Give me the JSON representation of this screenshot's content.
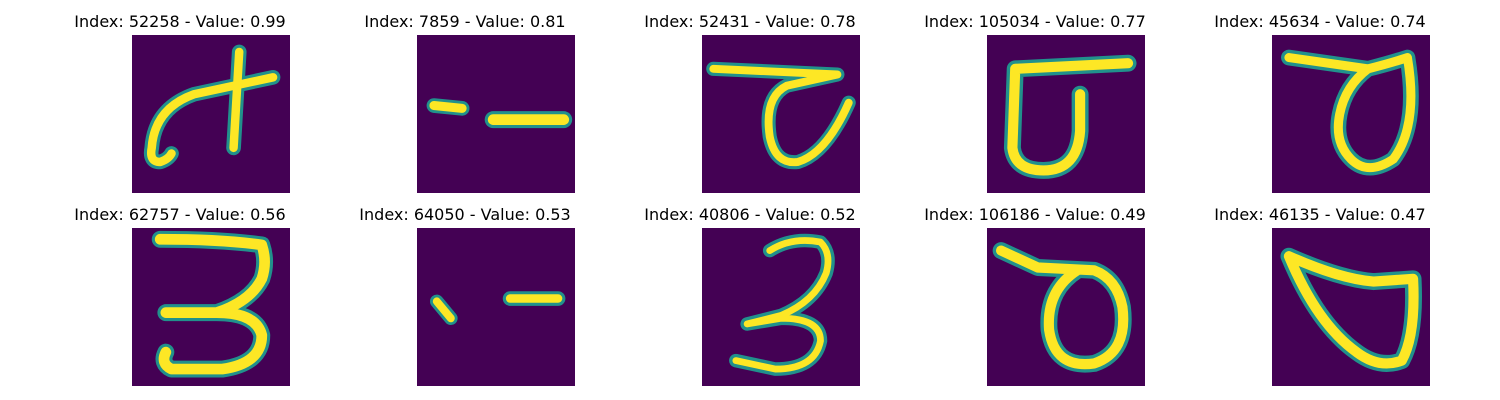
{
  "colors": {
    "background": "#440154",
    "stroke": "#fde725",
    "edge": "#21918c"
  },
  "panels": [
    {
      "title": "Index: 52258 - Value: 0.99",
      "glyph": "glyph-52258-icon"
    },
    {
      "title": "Index: 7859 - Value: 0.81",
      "glyph": "glyph-7859-icon"
    },
    {
      "title": "Index: 52431 - Value: 0.78",
      "glyph": "glyph-52431-icon"
    },
    {
      "title": "Index: 105034 - Value: 0.77",
      "glyph": "glyph-105034-icon"
    },
    {
      "title": "Index: 45634 - Value: 0.74",
      "glyph": "glyph-45634-icon"
    },
    {
      "title": "Index: 62757 - Value: 0.56",
      "glyph": "glyph-62757-icon"
    },
    {
      "title": "Index: 64050 - Value: 0.53",
      "glyph": "glyph-64050-icon"
    },
    {
      "title": "Index: 40806 - Value: 0.52",
      "glyph": "glyph-40806-icon"
    },
    {
      "title": "Index: 106186 - Value: 0.49",
      "glyph": "glyph-106186-icon"
    },
    {
      "title": "Index: 46135 - Value: 0.47",
      "glyph": "glyph-46135-icon"
    }
  ]
}
